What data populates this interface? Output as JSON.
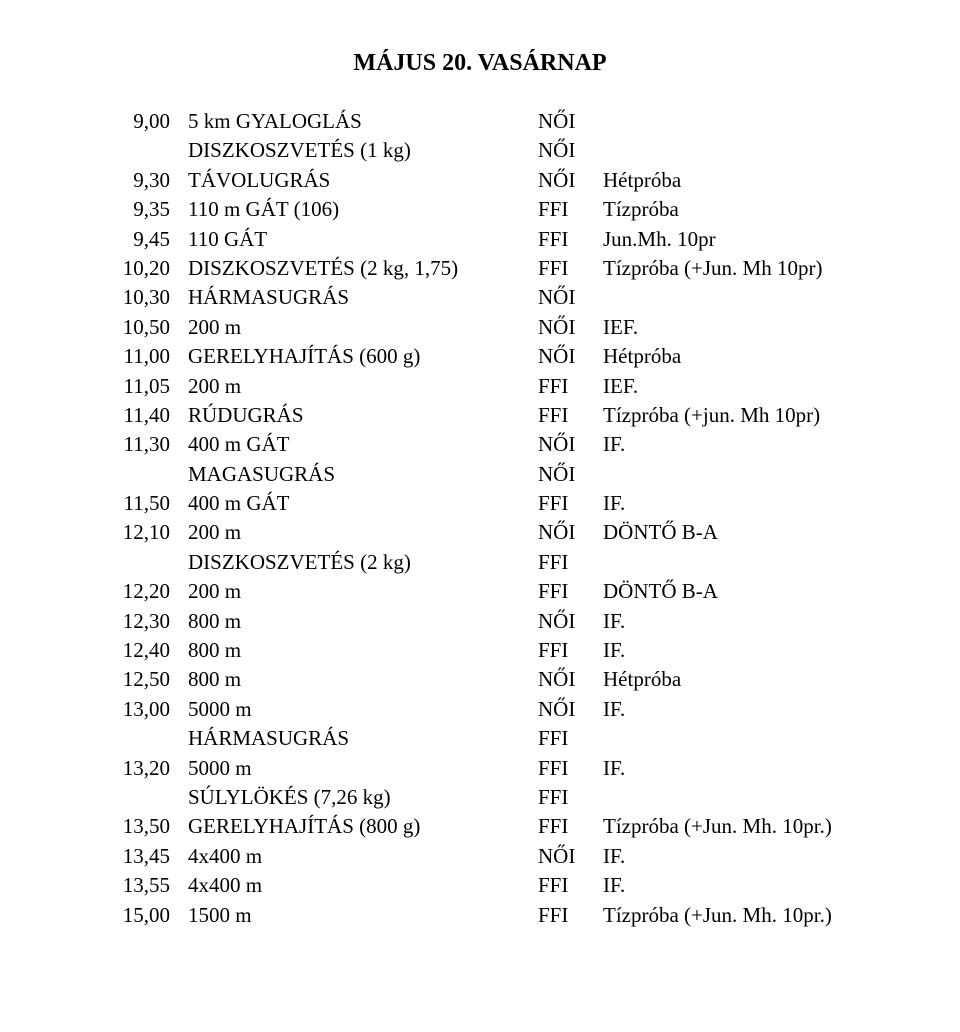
{
  "title": "MÁJUS 20. VASÁRNAP",
  "rows": [
    {
      "time": "9,00",
      "event": "5 km GYALOGLÁS",
      "gender": "NŐI",
      "note": ""
    },
    {
      "time": "",
      "event": "DISZKOSZVETÉS (1 kg)",
      "gender": "NŐI",
      "note": ""
    },
    {
      "time": "9,30",
      "event": "TÁVOLUGRÁS",
      "gender": "NŐI",
      "note": "Hétpróba"
    },
    {
      "time": "9,35",
      "event": "110 m GÁT (106)",
      "gender": "FFI",
      "note": "Tízpróba"
    },
    {
      "time": "9,45",
      "event": "110 GÁT",
      "gender": "FFI",
      "note": "Jun.Mh. 10pr"
    },
    {
      "time": "10,20",
      "event": "DISZKOSZVETÉS (2 kg, 1,75)",
      "gender": "FFI",
      "note": "Tízpróba  (+Jun. Mh 10pr)"
    },
    {
      "time": "10,30",
      "event": "HÁRMASUGRÁS",
      "gender": "NŐI",
      "note": ""
    },
    {
      "time": "10,50",
      "event": "200 m",
      "gender": "NŐI",
      "note": "IEF."
    },
    {
      "time": "11,00",
      "event": "GERELYHAJÍTÁS (600 g)",
      "gender": "NŐI",
      "note": " Hétpróba"
    },
    {
      "time": "11,05",
      "event": "200 m",
      "gender": "FFI",
      "note": "IEF."
    },
    {
      "time": "11,40",
      "event": "RÚDUGRÁS",
      "gender": "FFI",
      "note": "Tízpróba (+jun. Mh 10pr)"
    },
    {
      "time": "11,30",
      "event": "400 m GÁT",
      "gender": "NŐI",
      "note": "IF."
    },
    {
      "time": "",
      "event": "MAGASUGRÁS",
      "gender": "NŐI",
      "note": ""
    },
    {
      "time": "11,50",
      "event": "400 m GÁT",
      "gender": "FFI",
      "note": "IF."
    },
    {
      "time": "12,10",
      "event": "200 m",
      "gender": "NŐI",
      "note": "DÖNTŐ B-A"
    },
    {
      "time": "",
      "event": "DISZKOSZVETÉS (2 kg)",
      "gender": "FFI",
      "note": ""
    },
    {
      "time": "12,20",
      "event": "200 m",
      "gender": "FFI",
      "note": " DÖNTŐ B-A"
    },
    {
      "time": "12,30",
      "event": "800 m",
      "gender": "NŐI",
      "note": "IF."
    },
    {
      "time": "12,40",
      "event": "800 m",
      "gender": "FFI",
      "note": "IF."
    },
    {
      "time": "12,50",
      "event": "800 m",
      "gender": "NŐI",
      "note": " Hétpróba"
    },
    {
      "time": "13,00",
      "event": "5000 m",
      "gender": "NŐI",
      "note": "IF."
    },
    {
      "time": "",
      "event": "HÁRMASUGRÁS",
      "gender": "FFI",
      "note": ""
    },
    {
      "time": "13,20",
      "event": "5000 m",
      "gender": "FFI",
      "note": "IF."
    },
    {
      "time": "",
      "event": "SÚLYLÖKÉS (7,26 kg)",
      "gender": " FFI",
      "note": ""
    },
    {
      "time": "13,50",
      "event": "GERELYHAJÍTÁS (800 g)",
      "gender": "FFI",
      "note": "Tízpróba  (+Jun. Mh. 10pr.)"
    },
    {
      "time": "13,45",
      "event": "4x400 m",
      "gender": "NŐI",
      "note": "IF."
    },
    {
      "time": "13,55",
      "event": "4x400 m",
      "gender": "FFI",
      "note": "IF."
    },
    {
      "time": "15,00",
      "event": "1500 m",
      "gender": "FFI",
      "note": "Tízpróba (+Jun. Mh. 10pr.)"
    }
  ]
}
